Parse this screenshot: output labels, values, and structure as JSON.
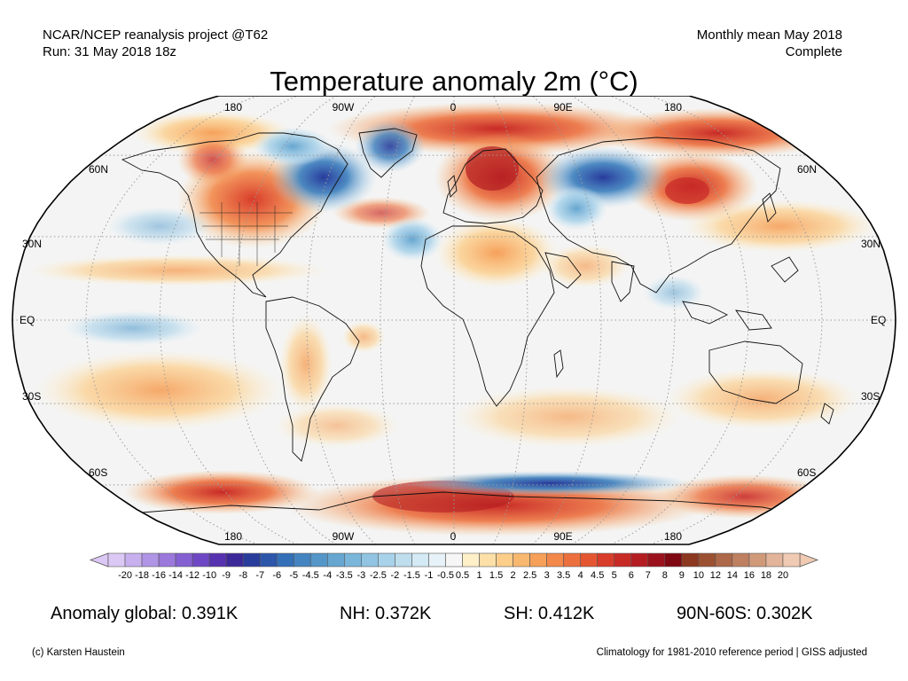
{
  "header": {
    "left_line1": "NCAR/NCEP reanalysis project @T62",
    "left_line2": "Run: 31 May 2018 18z",
    "right_line1": "Monthly mean May 2018",
    "right_line2": "Complete"
  },
  "title": "Temperature anomaly 2m (°C)",
  "map": {
    "lon_labels_top": [
      "180",
      "90W",
      "0",
      "90E",
      "180"
    ],
    "lon_labels_bottom": [
      "180",
      "90W",
      "0",
      "90E",
      "180"
    ],
    "lat_labels": [
      "60N",
      "30N",
      "EQ",
      "30S",
      "60S"
    ],
    "projection": "robinson",
    "ocean_color": "#f2f2f2"
  },
  "colorbar": {
    "labels": [
      "-20",
      "-18",
      "-16",
      "-14",
      "-12",
      "-10",
      "-9",
      "-8",
      "-7",
      "-6",
      "-5",
      "-4.5",
      "-4",
      "-3.5",
      "-3",
      "-2.5",
      "-2",
      "-1.5",
      "-1",
      "-0.5",
      "0.5",
      "1",
      "1.5",
      "2",
      "2.5",
      "3",
      "3.5",
      "4",
      "4.5",
      "5",
      "6",
      "7",
      "8",
      "9",
      "10",
      "12",
      "14",
      "16",
      "18",
      "20"
    ],
    "colors": [
      "#dcc8f5",
      "#c8b0ee",
      "#b094e6",
      "#9a78dc",
      "#8460d2",
      "#6e48c4",
      "#5632b0",
      "#3c2898",
      "#283c9c",
      "#2c56aa",
      "#3470b8",
      "#4484c0",
      "#5496c8",
      "#66a6d0",
      "#7ab6da",
      "#90c4e2",
      "#a8d2ea",
      "#bedeee",
      "#d4eaf4",
      "#e6f2f8",
      "#f6f6f6",
      "#fff0c8",
      "#fde0a8",
      "#fcce8a",
      "#f9b870",
      "#f6a05a",
      "#f2884a",
      "#ec703e",
      "#e45632",
      "#d83c2a",
      "#c82a26",
      "#b41e22",
      "#9c121c",
      "#800812",
      "#8c3820",
      "#9c5032",
      "#ac6848",
      "#be8060",
      "#d09a7a",
      "#e2b49a",
      "#f0cab2"
    ]
  },
  "stats": {
    "global": "Anomaly global: 0.391K",
    "nh": "NH: 0.372K",
    "sh": "SH: 0.412K",
    "arctic": "90N-60S: 0.302K"
  },
  "footer": {
    "credit": "(c) Karsten Haustein",
    "note": "Climatology for 1981-2010 reference period | GISS adjusted"
  }
}
